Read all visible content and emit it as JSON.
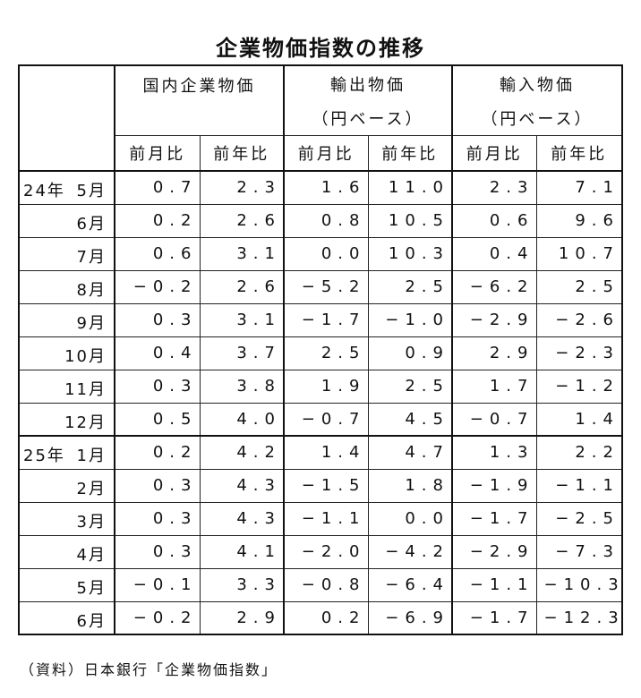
{
  "title": "企業物価指数の推移",
  "table": {
    "groups": [
      {
        "label": "国内企業物価"
      },
      {
        "label": "輸出物価",
        "sub": "（円ベース）"
      },
      {
        "label": "輸入物価",
        "sub": "（円ベース）"
      }
    ],
    "columns": [
      "前月比",
      "前年比",
      "前月比",
      "前年比",
      "前月比",
      "前年比"
    ],
    "rows": [
      {
        "year": "24年",
        "month": "5月",
        "values": [
          "0.7",
          "2.3",
          "1.6",
          "11.0",
          "2.3",
          "7.1"
        ]
      },
      {
        "month": "6月",
        "values": [
          "0.2",
          "2.6",
          "0.8",
          "10.5",
          "0.6",
          "9.6"
        ]
      },
      {
        "month": "7月",
        "values": [
          "0.6",
          "3.1",
          "0.0",
          "10.3",
          "0.4",
          "10.7"
        ]
      },
      {
        "month": "8月",
        "values": [
          "−0.2",
          "2.6",
          "−5.2",
          "2.5",
          "−6.2",
          "2.5"
        ]
      },
      {
        "month": "9月",
        "values": [
          "0.3",
          "3.1",
          "−1.7",
          "−1.0",
          "−2.9",
          "−2.6"
        ]
      },
      {
        "month": "10月",
        "values": [
          "0.4",
          "3.7",
          "2.5",
          "0.9",
          "2.9",
          "−2.3"
        ]
      },
      {
        "month": "11月",
        "values": [
          "0.3",
          "3.8",
          "1.9",
          "2.5",
          "1.7",
          "−1.2"
        ]
      },
      {
        "month": "12月",
        "values": [
          "0.5",
          "4.0",
          "−0.7",
          "4.5",
          "−0.7",
          "1.4"
        ]
      },
      {
        "year": "25年",
        "month": "1月",
        "values": [
          "0.2",
          "4.2",
          "1.4",
          "4.7",
          "1.3",
          "2.2"
        ]
      },
      {
        "month": "2月",
        "values": [
          "0.3",
          "4.3",
          "−1.5",
          "1.8",
          "−1.9",
          "−1.1"
        ]
      },
      {
        "month": "3月",
        "values": [
          "0.3",
          "4.3",
          "−1.1",
          "0.0",
          "−1.7",
          "−2.5"
        ]
      },
      {
        "month": "4月",
        "values": [
          "0.3",
          "4.1",
          "−2.0",
          "−4.2",
          "−2.9",
          "−7.3"
        ]
      },
      {
        "month": "5月",
        "values": [
          "−0.1",
          "3.3",
          "−0.8",
          "−6.4",
          "−1.1",
          "−10.3"
        ]
      },
      {
        "month": "6月",
        "values": [
          "−0.2",
          "2.9",
          "0.2",
          "−6.9",
          "−1.7",
          "−12.3"
        ]
      }
    ]
  },
  "source": "（資料）日本銀行「企業物価指数」"
}
